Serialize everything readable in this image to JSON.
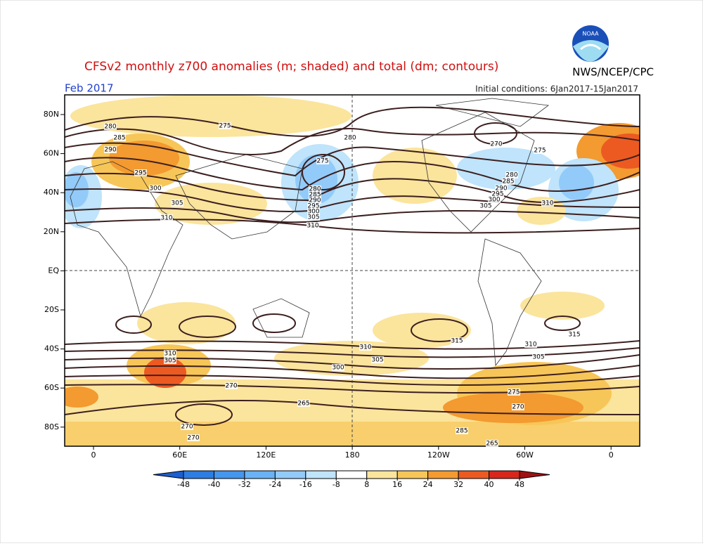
{
  "header": {
    "title": "CFSv2 monthly z700 anomalies (m; shaded) and total (dm; contours)",
    "agency": "NWS/NCEP/CPC",
    "logo": "NOAA",
    "month": "Feb 2017",
    "initial_conditions": "Initial conditions: 6Jan2017-15Jan2017"
  },
  "map": {
    "lat_labels": [
      "80N",
      "60N",
      "40N",
      "20N",
      "EQ",
      "20S",
      "40S",
      "60S",
      "80S"
    ],
    "lon_labels": [
      "0",
      "60E",
      "120E",
      "180",
      "120W",
      "60W",
      "0"
    ],
    "contour_labels": [
      "280",
      "285",
      "290",
      "295",
      "300",
      "305",
      "310",
      "275",
      "280",
      "275",
      "280",
      "285",
      "290",
      "295",
      "300",
      "305",
      "310",
      "270",
      "275",
      "280",
      "285",
      "290",
      "295",
      "300",
      "305",
      "310",
      "315",
      "310",
      "305",
      "300",
      "310",
      "305",
      "270",
      "265",
      "270",
      "270",
      "285",
      "265",
      "270",
      "315",
      "310",
      "305",
      "275"
    ]
  },
  "colorbar": {
    "ticks": [
      -48,
      -40,
      -32,
      -24,
      -16,
      -8,
      8,
      16,
      24,
      32,
      40,
      48
    ],
    "colors": [
      "#1c5fd0",
      "#2d7de2",
      "#4496ee",
      "#69b2f5",
      "#92cbf9",
      "#bfe4fb",
      "#ffffff",
      "#fbe49c",
      "#f7c658",
      "#f39a30",
      "#ec5a22",
      "#d8261b",
      "#a01212"
    ]
  }
}
